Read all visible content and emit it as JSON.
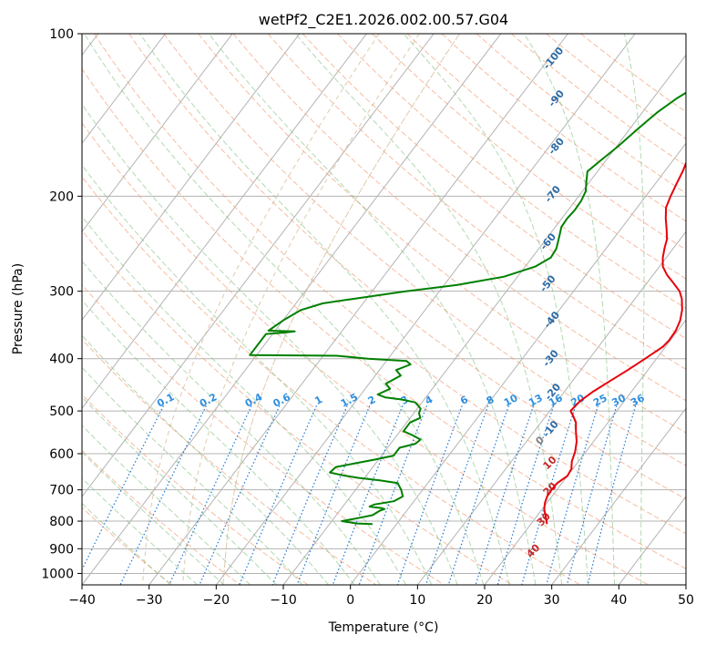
{
  "chart_data": {
    "type": "line",
    "title": "wetPf2_C2E1.2026.002.00.57.G04",
    "xlabel": "Temperature (°C)",
    "ylabel": "Pressure (hPa)",
    "xlim": [
      -40,
      50
    ],
    "ylim": [
      1050,
      100
    ],
    "yscale": "log",
    "grid": true,
    "x_ticks": [
      -40,
      -30,
      -20,
      -10,
      0,
      10,
      20,
      30,
      40,
      50
    ],
    "y_ticks": [
      100,
      200,
      300,
      400,
      500,
      600,
      700,
      800,
      900,
      1000
    ],
    "dry_adiabat_labels": [
      {
        "value": -100,
        "p": 112,
        "T": -28.8
      },
      {
        "value": -90,
        "p": 133,
        "T": -23.8
      },
      {
        "value": -80,
        "p": 163,
        "T": -18.4
      },
      {
        "value": -70,
        "p": 200,
        "T": -13.5
      },
      {
        "value": -60,
        "p": 245,
        "T": -8.8
      },
      {
        "value": -50,
        "p": 293,
        "T": -4.1
      },
      {
        "value": -40,
        "p": 342,
        "T": 0.6
      },
      {
        "value": -30,
        "p": 403,
        "T": 4.8
      },
      {
        "value": -20,
        "p": 465,
        "T": 8.9
      },
      {
        "value": -10,
        "p": 545,
        "T": 12.8
      }
    ],
    "moist_adiabat_labels": [
      {
        "value": 0,
        "p": 573,
        "T": 12.5
      },
      {
        "value": 10,
        "p": 630,
        "T": 16.5
      },
      {
        "value": 20,
        "p": 705,
        "T": 19.5
      },
      {
        "value": 30,
        "p": 802,
        "T": 22
      },
      {
        "value": 40,
        "p": 917,
        "T": 24
      }
    ],
    "mixing_ratio_labels": [
      "0.1",
      "0.2",
      "0.4",
      "0.6",
      "1",
      "1.5",
      "2",
      "3",
      "4",
      "6",
      "8",
      "10",
      "13",
      "16",
      "20",
      "25",
      "30",
      "36"
    ],
    "series": [
      {
        "name": "",
        "color": "#e8000b",
        "points": [
          [
            3.5,
            100
          ],
          [
            2.8,
            106
          ],
          [
            1.2,
            112
          ],
          [
            -0.2,
            120
          ],
          [
            -0.3,
            130
          ],
          [
            0,
            140
          ],
          [
            0.5,
            150
          ],
          [
            1.2,
            160
          ],
          [
            2,
            170
          ],
          [
            2.7,
            180
          ],
          [
            3.2,
            190
          ],
          [
            3.7,
            200
          ],
          [
            4.3,
            210
          ],
          [
            5.5,
            220
          ],
          [
            6.8,
            230
          ],
          [
            8,
            240
          ],
          [
            8.7,
            250
          ],
          [
            9.5,
            260
          ],
          [
            10.5,
            270
          ],
          [
            12.1,
            280
          ],
          [
            14,
            290
          ],
          [
            15.8,
            300
          ],
          [
            17,
            310
          ],
          [
            18.3,
            325
          ],
          [
            19.2,
            340
          ],
          [
            19.7,
            355
          ],
          [
            19.8,
            370
          ],
          [
            19.6,
            380
          ],
          [
            18.3,
            400
          ],
          [
            17,
            420
          ],
          [
            15.6,
            440
          ],
          [
            14.3,
            460
          ],
          [
            13.4,
            480
          ],
          [
            13.1,
            500
          ],
          [
            14,
            510
          ],
          [
            15.2,
            525
          ],
          [
            16.2,
            545
          ],
          [
            17.5,
            570
          ],
          [
            18.4,
            595
          ],
          [
            19,
            620
          ],
          [
            19.8,
            640
          ],
          [
            20,
            660
          ],
          [
            19.3,
            680
          ],
          [
            19.2,
            700
          ],
          [
            19.3,
            720
          ],
          [
            19.7,
            740
          ],
          [
            20.3,
            760
          ],
          [
            21.6,
            790
          ],
          [
            22.4,
            810
          ]
        ]
      },
      {
        "name": "",
        "color": "#008000",
        "points": [
          [
            -1.6,
            100
          ],
          [
            -2.5,
            104
          ],
          [
            -2.9,
            110
          ],
          [
            -3.2,
            116
          ],
          [
            -4.6,
            124
          ],
          [
            -6.5,
            132
          ],
          [
            -7.8,
            140
          ],
          [
            -8.8,
            150
          ],
          [
            -9.8,
            162
          ],
          [
            -10.8,
            172
          ],
          [
            -11.5,
            180
          ],
          [
            -10.5,
            188
          ],
          [
            -9.5,
            196
          ],
          [
            -9.1,
            204
          ],
          [
            -9,
            212
          ],
          [
            -9.2,
            220
          ],
          [
            -9.1,
            228
          ],
          [
            -8.3,
            238
          ],
          [
            -7.4,
            250
          ],
          [
            -7.2,
            260
          ],
          [
            -8.5,
            270
          ],
          [
            -12,
            282
          ],
          [
            -18,
            292
          ],
          [
            -25,
            300
          ],
          [
            -32,
            310
          ],
          [
            -36,
            316
          ],
          [
            -38.5,
            325
          ],
          [
            -40,
            340
          ],
          [
            -41,
            355
          ],
          [
            -37,
            356
          ],
          [
            -38.5,
            358
          ],
          [
            -41,
            360
          ],
          [
            -41,
            394
          ],
          [
            -28,
            395
          ],
          [
            -23,
            400
          ],
          [
            -17,
            404
          ],
          [
            -16,
            410
          ],
          [
            -17.5,
            420
          ],
          [
            -16.2,
            430
          ],
          [
            -17.5,
            445
          ],
          [
            -16.3,
            455
          ],
          [
            -17.5,
            466
          ],
          [
            -16,
            472
          ],
          [
            -13.5,
            476
          ],
          [
            -11,
            482
          ],
          [
            -9.5,
            495
          ],
          [
            -9.2,
            505
          ],
          [
            -8.5,
            515
          ],
          [
            -9.5,
            525
          ],
          [
            -9.5,
            545
          ],
          [
            -7.6,
            555
          ],
          [
            -6,
            565
          ],
          [
            -6.3,
            575
          ],
          [
            -8.2,
            585
          ],
          [
            -8.2,
            605
          ],
          [
            -10.5,
            615
          ],
          [
            -13,
            625
          ],
          [
            -15.5,
            635
          ],
          [
            -15.8,
            650
          ],
          [
            -13.5,
            658
          ],
          [
            -11,
            665
          ],
          [
            -7.5,
            672
          ],
          [
            -4.5,
            680
          ],
          [
            -3.2,
            700
          ],
          [
            -2.2,
            720
          ],
          [
            -3,
            735
          ],
          [
            -5.5,
            745
          ],
          [
            -6,
            752
          ],
          [
            -4,
            757
          ],
          [
            -3.5,
            760
          ],
          [
            -4,
            765
          ],
          [
            -4.6,
            780
          ],
          [
            -6.5,
            790
          ],
          [
            -8.5,
            800
          ],
          [
            -6,
            808
          ],
          [
            -3.6,
            810
          ]
        ]
      }
    ]
  }
}
